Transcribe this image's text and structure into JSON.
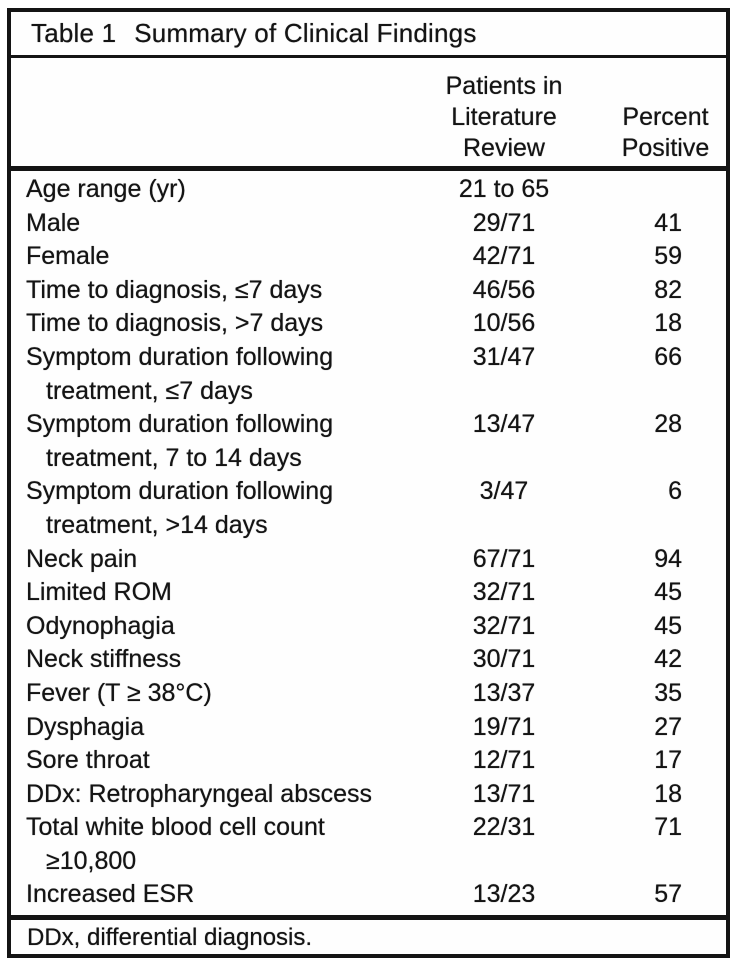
{
  "colors": {
    "border": "#141414",
    "text": "#141414",
    "background": "#ffffff"
  },
  "table": {
    "label": "Table 1",
    "title": "Summary of Clinical Findings",
    "header": {
      "col2_lines": [
        "Patients in",
        "Literature",
        "Review"
      ],
      "col3_lines": [
        "Percent",
        "Positive"
      ]
    },
    "rows": [
      {
        "label": "Age range (yr)",
        "patients": "21 to 65",
        "percent": ""
      },
      {
        "label": "Male",
        "patients": "29/71",
        "percent": "41"
      },
      {
        "label": "Female",
        "patients": "42/71",
        "percent": "59"
      },
      {
        "label": "Time to diagnosis, ≤7 days",
        "patients": "46/56",
        "percent": "82"
      },
      {
        "label": "Time to diagnosis, >7 days",
        "patients": "10/56",
        "percent": "18"
      },
      {
        "label": "Symptom duration following",
        "label2": "treatment, ≤7 days",
        "patients": "31/47",
        "percent": "66"
      },
      {
        "label": "Symptom duration following",
        "label2": "treatment, 7 to 14 days",
        "patients": "13/47",
        "percent": "28"
      },
      {
        "label": "Symptom duration following",
        "label2": "treatment, >14 days",
        "patients": "3/47",
        "percent": "6"
      },
      {
        "label": "Neck pain",
        "patients": "67/71",
        "percent": "94"
      },
      {
        "label": "Limited ROM",
        "patients": "32/71",
        "percent": "45"
      },
      {
        "label": "Odynophagia",
        "patients": "32/71",
        "percent": "45"
      },
      {
        "label": "Neck stiffness",
        "patients": "30/71",
        "percent": "42"
      },
      {
        "label": "Fever (T ≥ 38°C)",
        "patients": "13/37",
        "percent": "35"
      },
      {
        "label": "Dysphagia",
        "patients": "19/71",
        "percent": "27"
      },
      {
        "label": "Sore throat",
        "patients": "12/71",
        "percent": "17"
      },
      {
        "label": "DDx: Retropharyngeal abscess",
        "patients": "13/71",
        "percent": "18"
      },
      {
        "label": "Total white blood cell count",
        "label2": "≥10,800",
        "patients": "22/31",
        "percent": "71"
      },
      {
        "label": "Increased ESR",
        "patients": "13/23",
        "percent": "57"
      }
    ],
    "footnote": "DDx, differential diagnosis."
  }
}
